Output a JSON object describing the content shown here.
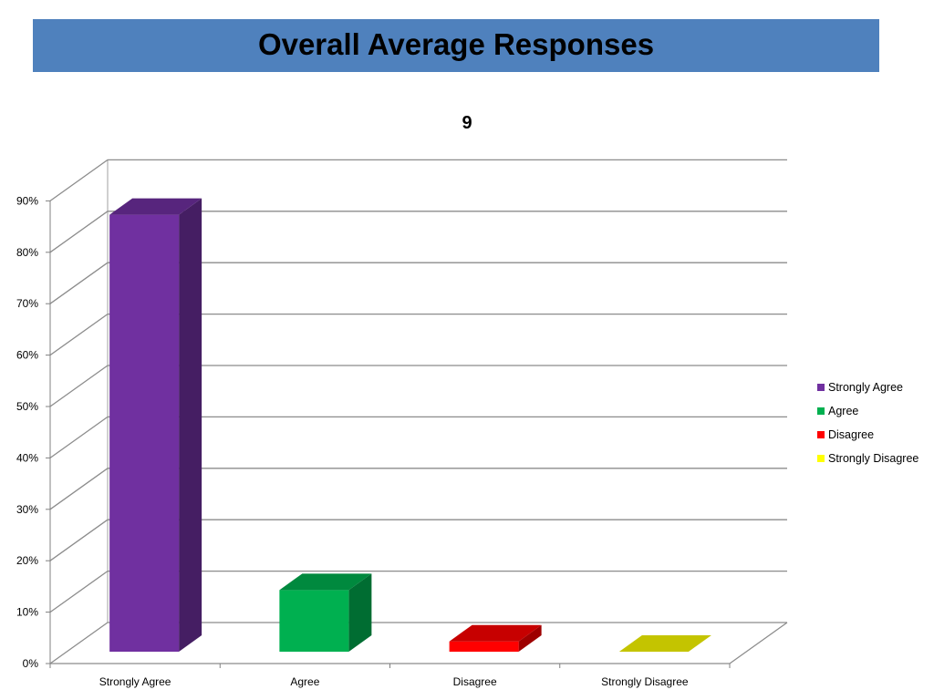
{
  "header": {
    "title": "Overall Average Responses"
  },
  "chart_data": {
    "type": "bar",
    "title": "9",
    "categories": [
      "Strongly Agree",
      "Agree",
      "Disagree",
      "Strongly Disagree"
    ],
    "values": [
      85,
      12,
      2,
      0
    ],
    "colors": [
      "#7030a0",
      "#00b050",
      "#ff0000",
      "#ffff00"
    ],
    "y_ticks": [
      "0%",
      "10%",
      "20%",
      "30%",
      "40%",
      "50%",
      "60%",
      "70%",
      "80%",
      "90%"
    ],
    "ylim": [
      0,
      90
    ],
    "y_unit": "%",
    "grid": true,
    "legend_position": "right",
    "legend": [
      "Strongly Agree",
      "Agree",
      "Disagree",
      "Strongly Disagree"
    ]
  }
}
